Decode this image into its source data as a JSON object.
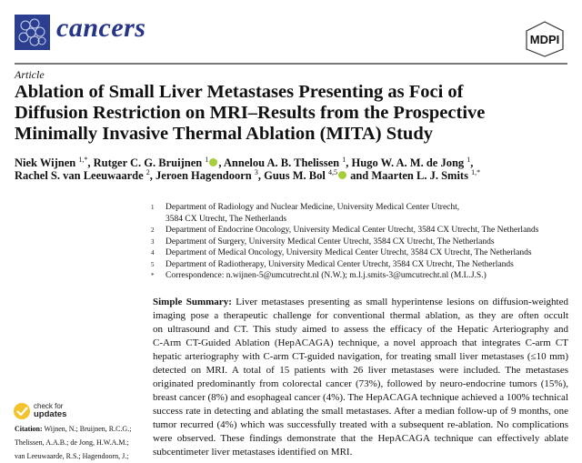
{
  "header": {
    "journal": "cancers",
    "publisher_logo": "MDPI",
    "journal_logo": "cancers-cell-logo",
    "brand_color": "#26358a"
  },
  "article_type": "Article",
  "title": [
    "Ablation of Small Liver Metastases Presenting as Foci of",
    "Diffusion Restriction on MRI–Results from the Prospective",
    "Minimally Invasive Thermal Ablation (MITA) Study"
  ],
  "authors": [
    {
      "name": "Niek Wijnen",
      "sup": "1,*",
      "orcid": false,
      "sep": ", "
    },
    {
      "name": "Rutger C. G. Bruijnen",
      "sup": "1",
      "orcid": true,
      "sep": ", "
    },
    {
      "name": "Annelou A. B. Thelissen",
      "sup": "1",
      "orcid": false,
      "sep": ", "
    },
    {
      "name": "Hugo W. A. M. de Jong",
      "sup": "1",
      "orcid": false,
      "sep": ","
    },
    {
      "name": "Rachel S. van Leeuwaarde",
      "sup": "2",
      "orcid": false,
      "sep": ", "
    },
    {
      "name": "Jeroen Hagendoorn",
      "sup": "3",
      "orcid": false,
      "sep": ", "
    },
    {
      "name": "Guus M. Bol",
      "sup": "4,5",
      "orcid": true,
      "sep": " and "
    },
    {
      "name": "Maarten L. J. Smits",
      "sup": "1,*",
      "orcid": false,
      "sep": ""
    }
  ],
  "affiliations": [
    {
      "n": "1",
      "lines": [
        "Department of Radiology and Nuclear Medicine, University Medical Center Utrecht,",
        "3584 CX Utrecht, The Netherlands"
      ]
    },
    {
      "n": "2",
      "lines": [
        "Department of Endocrine Oncology, University Medical Center Utrecht, 3584 CX Utrecht, The Netherlands"
      ]
    },
    {
      "n": "3",
      "lines": [
        "Department of Surgery, University Medical Center Utrecht, 3584 CX Utrecht, The Netherlands"
      ]
    },
    {
      "n": "4",
      "lines": [
        "Department of Medical Oncology, University Medical Center Utrecht, 3584 CX Utrecht, The Netherlands"
      ]
    },
    {
      "n": "5",
      "lines": [
        "Department of Radiotherapy, University Medical Center Utrecht, 3584 CX Utrecht, The Netherlands"
      ]
    },
    {
      "n": "*",
      "lines": [
        "Correspondence: n.wijnen-5@umcutrecht.nl (N.W.); m.l.j.smits-3@umcutrecht.nl (M.L.J.S.)"
      ]
    }
  ],
  "summary": {
    "label": "Simple Summary:",
    "lines": [
      " Liver metastases presenting as small hyperintense lesions on diffusion-weighted",
      "imaging pose a therapeutic challenge for conventional thermal ablation, as they are often occult",
      "on ultrasound and CT. This study aimed to assess the efficacy of the Hepatic Arteriography and",
      "C-Arm CT-Guided Ablation (HepACAGA) technique, a novel approach that integrates C-arm CT",
      "hepatic arteriography with C-arm CT-guided navigation, for treating small liver metastases (≤10 mm)",
      "detected on MRI. A total of 15 patients with 26 liver metastases were included.  The metastases",
      "originated predominantly from colorectal cancer (73%), followed by neuro-endocrine tumors (15%),",
      "breast cancer (8%) and esophageal cancer (4%). The HepACAGA technique achieved a 100% technical",
      "success rate in detecting and ablating the small metastases. After a median follow-up of 9 months, one",
      "tumor recurred (4%) which was successfully treated with a subsequent re-ablation. No complications",
      "were observed. These findings demonstrate that the HepACAGA technique can effectively ablate",
      "subcentimeter liver metastases identified on MRI."
    ]
  },
  "check_updates": {
    "line1": "check for",
    "line2": "updates"
  },
  "citation": {
    "label": "Citation:",
    "lines": [
      " Wijnen, N.; Bruijnen, R.C.G.;",
      "Thelissen, A.A.B.; de Jong, H.W.A.M.;",
      "van Leeuwaarde, R.S.; Hagendoorn, J.;"
    ]
  }
}
